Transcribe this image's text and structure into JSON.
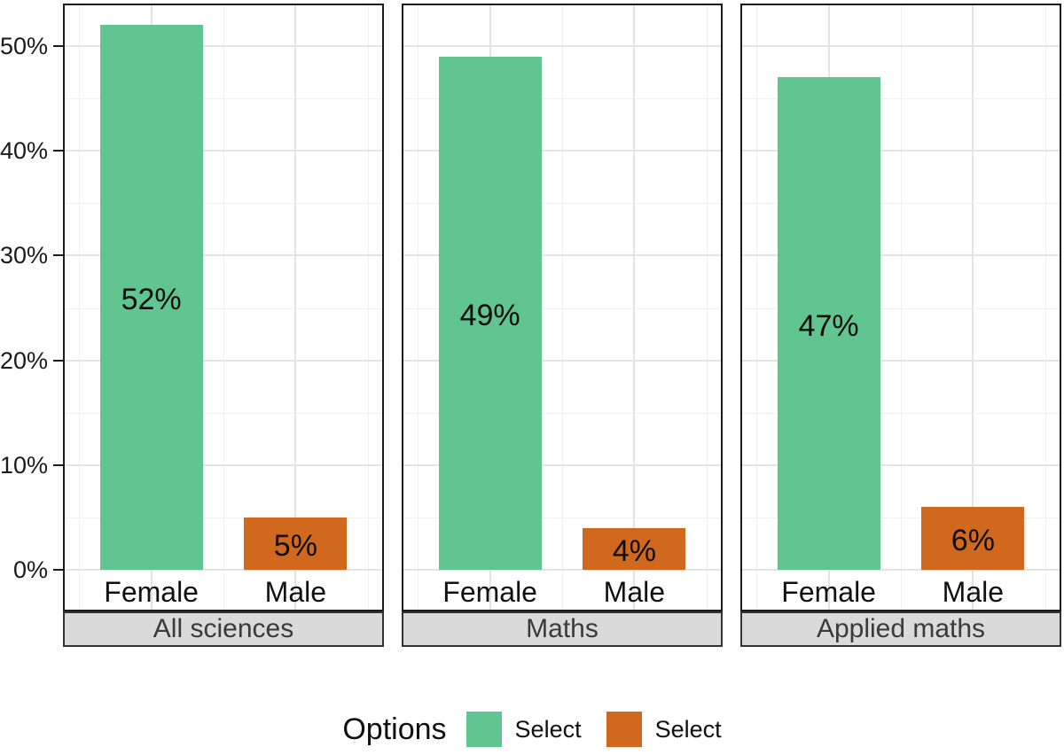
{
  "chart_data": {
    "type": "bar",
    "title": "",
    "xlabel": "",
    "ylabel": "",
    "y_axis": {
      "tick_labels": [
        "0%",
        "10%",
        "20%",
        "30%",
        "40%",
        "50%"
      ],
      "tick_values": [
        0,
        10,
        20,
        30,
        40,
        50
      ],
      "minor_tick_values": [
        5,
        15,
        25,
        35,
        45
      ],
      "ylim": [
        0,
        54
      ]
    },
    "categories": [
      "Female",
      "Male"
    ],
    "facets": [
      {
        "label": "All sciences",
        "values": [
          52,
          5
        ],
        "value_labels": [
          "52%",
          "5%"
        ]
      },
      {
        "label": "Maths",
        "values": [
          49,
          4
        ],
        "value_labels": [
          "49%",
          "4%"
        ]
      },
      {
        "label": "Applied maths",
        "values": [
          47,
          6
        ],
        "value_labels": [
          "47%",
          "6%"
        ]
      }
    ],
    "series_colors": [
      "#61C591",
      "#D0681E"
    ],
    "grid": {
      "show": true,
      "major_color": "#E4E4E4",
      "minor_color": "#F1F1F1"
    },
    "panel": {
      "background": "#FFFFFF",
      "border_color": "#1B1B1B"
    },
    "strip": {
      "background": "#DADADA",
      "border_color": "#333333",
      "text_color": "#3A3A3A"
    },
    "legend": {
      "title": "Options",
      "position": "bottom",
      "items": [
        {
          "label": "Select",
          "color": "#61C591"
        },
        {
          "label": "Select",
          "color": "#D0681E"
        }
      ]
    }
  }
}
